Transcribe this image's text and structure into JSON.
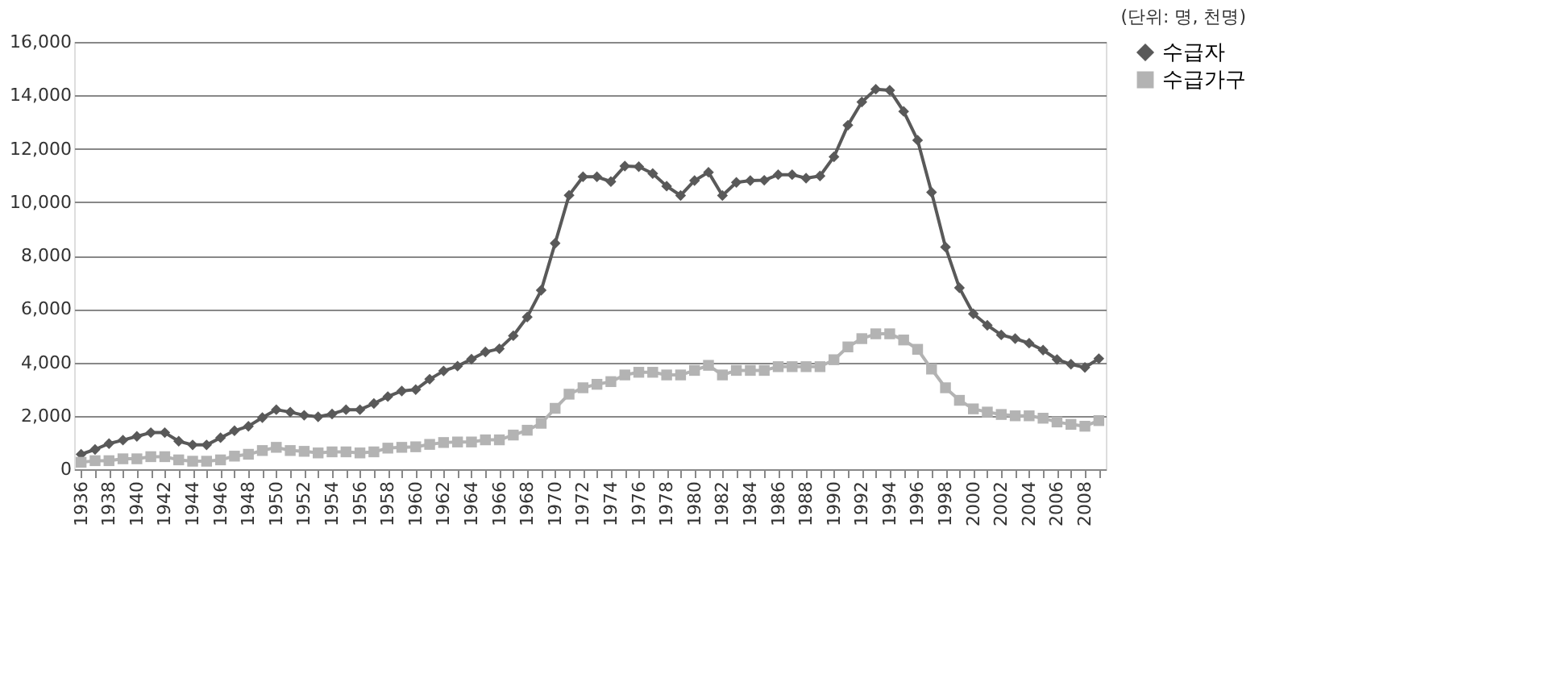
{
  "chart_data": {
    "type": "line",
    "annotations": [
      "(단위: 명, 천명)"
    ],
    "categories": [
      "1936",
      null,
      "1938",
      null,
      "1940",
      null,
      "1942",
      null,
      "1944",
      null,
      "1946",
      null,
      "1948",
      null,
      "1950",
      null,
      "1952",
      null,
      "1954",
      null,
      "1956",
      null,
      "1958",
      null,
      "1960",
      null,
      "1962",
      null,
      "1964",
      null,
      "1966",
      null,
      "1968",
      null,
      "1970",
      null,
      "1972",
      null,
      "1974",
      null,
      "1976",
      null,
      "1978",
      null,
      "1980",
      null,
      "1982",
      null,
      "1984",
      null,
      "1986",
      null,
      "1988",
      null,
      "1990",
      null,
      "1992",
      null,
      "1994",
      null,
      "1996",
      null,
      "1998",
      null,
      "2000",
      null,
      "2002",
      null,
      "2004",
      null,
      "2006",
      null,
      "2008",
      null
    ],
    "series": [
      {
        "name": "수급자",
        "color": "#595959",
        "marker": "diamond",
        "values": [
          560,
          740,
          960,
          1090,
          1230,
          1370,
          1370,
          1050,
          910,
          910,
          1180,
          1440,
          1610,
          1930,
          2230,
          2140,
          2020,
          1960,
          2070,
          2230,
          2230,
          2460,
          2720,
          2930,
          2980,
          3370,
          3680,
          3860,
          4120,
          4390,
          4510,
          5000,
          5700,
          6700,
          8460,
          10260,
          10950,
          10950,
          10770,
          11350,
          11330,
          11070,
          10600,
          10250,
          10810,
          11120,
          10250,
          10740,
          10810,
          10820,
          11030,
          11030,
          10900,
          10980,
          11700,
          12880,
          13750,
          14230,
          14190,
          13400,
          12320,
          10370,
          8320,
          6790,
          5820,
          5390,
          5030,
          4890,
          4720,
          4460,
          4110,
          3930,
          3810,
          4140
        ]
      },
      {
        "name": "수급가구",
        "color": "#b3b3b3",
        "marker": "square",
        "values": [
          260,
          320,
          320,
          390,
          390,
          470,
          470,
          350,
          300,
          300,
          350,
          490,
          560,
          700,
          820,
          700,
          670,
          610,
          650,
          650,
          610,
          650,
          790,
          820,
          840,
          930,
          1000,
          1020,
          1020,
          1100,
          1100,
          1280,
          1460,
          1720,
          2280,
          2810,
          3050,
          3180,
          3280,
          3530,
          3630,
          3630,
          3530,
          3530,
          3700,
          3890,
          3530,
          3700,
          3700,
          3700,
          3840,
          3840,
          3840,
          3840,
          4100,
          4580,
          4890,
          5070,
          5070,
          4840,
          4490,
          3750,
          3050,
          2580,
          2260,
          2140,
          2050,
          2000,
          2000,
          1910,
          1770,
          1680,
          1610,
          1820
        ]
      }
    ],
    "ylim": [
      0,
      16000
    ],
    "yticks": [
      0,
      {
        "value": 2000,
        "label": "2,000"
      },
      {
        "value": 4000,
        "label": "4,000"
      },
      {
        "value": 6000,
        "label": "6,000"
      },
      {
        "value": 8000,
        "label": "8,000"
      },
      {
        "value": 10000,
        "label": "10,000"
      },
      {
        "value": 12000,
        "label": "12,000"
      },
      {
        "value": 14000,
        "label": "14,000"
      },
      {
        "value": 16000,
        "label": "16,000"
      }
    ],
    "grid": "y",
    "legend": "right",
    "line_style": "solid"
  }
}
